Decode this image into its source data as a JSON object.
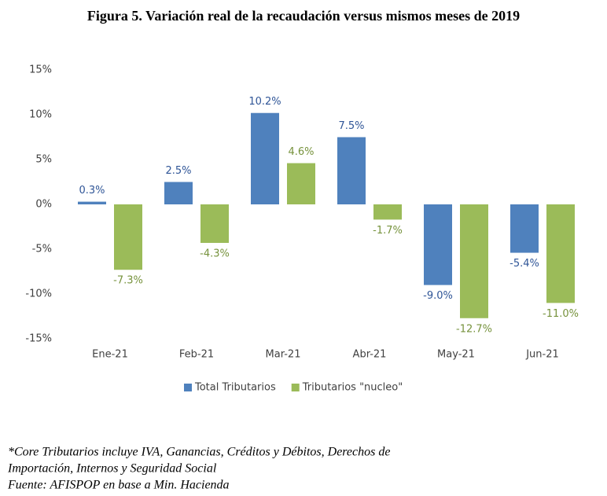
{
  "chart_data": {
    "type": "bar",
    "title": "Figura 5.  Variación real de la recaudación versus mismos meses de 2019",
    "categories": [
      "Ene-21",
      "Feb-21",
      "Mar-21",
      "Abr-21",
      "May-21",
      "Jun-21"
    ],
    "series": [
      {
        "name": "Total Tributarios",
        "color": "#4f81bd",
        "values": [
          0.3,
          2.5,
          10.2,
          7.5,
          -9.0,
          -5.4
        ],
        "value_labels": [
          "0.3%",
          "2.5%",
          "10.2%",
          "7.5%",
          "-9.0%",
          "-5.4%"
        ]
      },
      {
        "name": "Tributarios \"nucleo\"",
        "color": "#9bbb59",
        "values": [
          -7.3,
          -4.3,
          4.6,
          -1.7,
          -12.7,
          -11.0
        ],
        "value_labels": [
          "-7.3%",
          "-4.3%",
          "4.6%",
          "-1.7%",
          "-12.7%",
          "-11.0%"
        ]
      }
    ],
    "ylim": [
      -15,
      15
    ],
    "yticks": [
      {
        "value": -15,
        "label": "-15%"
      },
      {
        "value": -10,
        "label": "-10%"
      },
      {
        "value": -5,
        "label": "-5%"
      },
      {
        "value": 0,
        "label": "0%"
      },
      {
        "value": 5,
        "label": "5%"
      },
      {
        "value": 10,
        "label": "10%"
      },
      {
        "value": 15,
        "label": "15%"
      }
    ],
    "grid": false,
    "legend": "bottom",
    "annotations": [
      "*Core Tributarios incluye IVA, Ganancias, Créditos y Débitos, Derechos de",
      "Importación, Internos y Seguridad Social",
      "Fuente: AFISPOP en base a Min. Hacienda"
    ]
  }
}
